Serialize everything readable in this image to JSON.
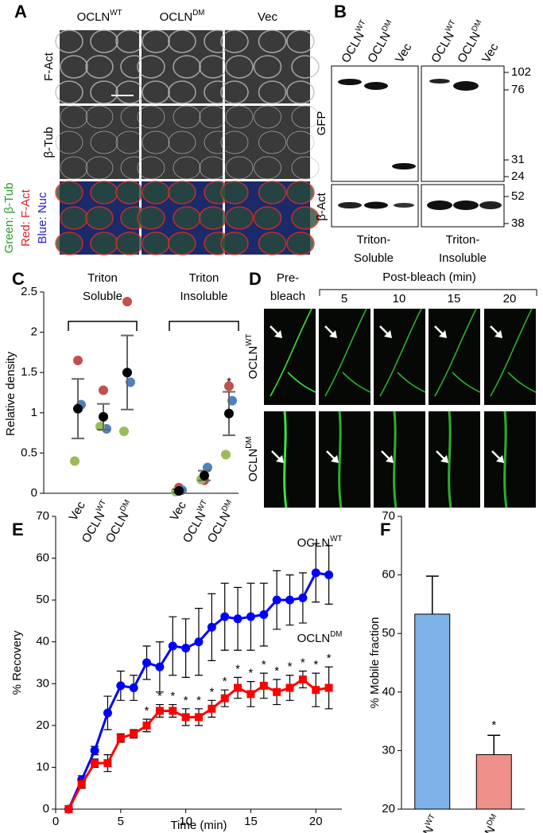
{
  "figure": {
    "panel_labels": [
      "A",
      "B",
      "C",
      "D",
      "E",
      "F"
    ],
    "panel_a": {
      "columns": [
        {
          "label": "OCLN",
          "sup": "WT"
        },
        {
          "label": "OCLN",
          "sup": "DM"
        },
        "Vec"
      ],
      "rows": [
        "F-Act",
        "β-Tub"
      ],
      "merge_labels": [
        "Green: β-Tub",
        "Red: F-Act",
        "Blue: Nuc"
      ]
    },
    "panel_b": {
      "lanes": [
        {
          "label": "OCLN",
          "sup": "WT"
        },
        {
          "label": "OCLN",
          "sup": "DM"
        },
        "Vec",
        {
          "label": "OCLN",
          "sup": "WT"
        },
        {
          "label": "OCLN",
          "sup": "DM"
        },
        "Vec"
      ],
      "rows": [
        "GFP",
        "β-Act"
      ],
      "markers": [
        102,
        76,
        31,
        24,
        52,
        38
      ],
      "fractions": [
        [
          "Triton-",
          "Soluble"
        ],
        [
          "Triton-",
          "Insoluble"
        ]
      ]
    },
    "panel_d": {
      "pre": [
        "Pre-",
        "bleach"
      ],
      "post": "Post-bleach (min)",
      "times": [
        5,
        10,
        15,
        20
      ],
      "rows": [
        {
          "label": "OCLN",
          "sup": "WT"
        },
        {
          "label": "OCLN",
          "sup": "DM"
        }
      ]
    }
  },
  "chart_data": [
    {
      "type": "dot",
      "y_label": "Relative density",
      "group_labels": [
        [
          "Triton",
          "Soluble"
        ],
        [
          "Triton",
          "Insoluble"
        ]
      ],
      "categories": [
        "Vec",
        {
          "label": "OCLN",
          "sup": "WT"
        },
        {
          "label": "OCLN",
          "sup": "DM"
        },
        "Vec",
        {
          "label": "OCLN",
          "sup": "WT"
        },
        {
          "label": "OCLN",
          "sup": "DM"
        }
      ],
      "replicates": [
        {
          "color": "#c0504d",
          "values": [
            1.65,
            1.28,
            2.38,
            0.07,
            0.16,
            1.33
          ]
        },
        {
          "color": "#4f81bd",
          "values": [
            1.1,
            0.8,
            1.38,
            0.04,
            0.32,
            1.15
          ]
        },
        {
          "color": "#9bbb59",
          "values": [
            0.4,
            0.83,
            0.77,
            0.02,
            0.17,
            0.48
          ]
        }
      ],
      "mean": {
        "color": "#000000",
        "values": [
          1.05,
          0.95,
          1.5,
          0.03,
          0.22,
          0.99
        ],
        "errors": [
          0.37,
          0.16,
          0.46,
          0.02,
          0.06,
          0.27
        ]
      },
      "significance": [
        null,
        null,
        null,
        null,
        null,
        "*"
      ],
      "ylim": [
        0,
        2.5
      ],
      "yticks": [
        0,
        0.5,
        1,
        1.5,
        2,
        2.5
      ]
    },
    {
      "type": "line",
      "x_label": "Time (min)",
      "y_label": "% Recovery",
      "x": [
        1,
        2,
        3,
        4,
        5,
        6,
        7,
        8,
        9,
        10,
        11,
        12,
        13,
        14,
        15,
        16,
        17,
        18,
        19,
        20,
        21
      ],
      "series": [
        {
          "name": {
            "label": "OCLN",
            "sup": "WT"
          },
          "color": "#0000ff",
          "marker": "circle",
          "values": [
            0,
            7,
            14,
            23,
            29.5,
            29,
            35,
            34,
            39,
            38.5,
            40,
            43.5,
            46,
            45.5,
            46,
            46.5,
            50,
            50,
            50.5,
            56.5,
            56
          ],
          "errors": [
            0,
            1,
            1,
            4,
            3.5,
            3,
            4,
            6,
            7,
            7,
            8,
            8,
            8,
            7.5,
            8,
            7.5,
            7,
            6,
            6,
            7,
            7
          ]
        },
        {
          "name": {
            "label": "OCLN",
            "sup": "DM"
          },
          "color": "#ff0000",
          "marker": "square",
          "values": [
            0,
            6,
            11,
            11,
            17,
            18,
            20,
            23.5,
            23.5,
            22,
            22,
            24,
            26.5,
            29,
            27.5,
            29.5,
            28,
            29,
            31,
            28.5,
            29
          ],
          "errors": [
            0,
            1,
            1,
            2,
            1,
            1,
            1.5,
            1.5,
            1.5,
            2,
            2,
            2,
            2,
            2.5,
            3,
            3,
            3,
            3,
            2,
            4,
            5
          ]
        }
      ],
      "significance": [
        null,
        null,
        null,
        null,
        null,
        null,
        "*",
        "*",
        "*",
        "*",
        "*",
        "*",
        "*",
        "*",
        "*",
        "*",
        "*",
        "*",
        "*",
        "*",
        "*"
      ],
      "xlim": [
        0,
        22
      ],
      "xticks": [
        0,
        5,
        10,
        15,
        20
      ],
      "ylim": [
        0,
        70
      ],
      "yticks": [
        0,
        10,
        20,
        30,
        40,
        50,
        60,
        70
      ]
    },
    {
      "type": "bar",
      "y_label": "% Mobile fraction",
      "categories": [
        {
          "label": "OCLN",
          "sup": "WT"
        },
        {
          "label": "OCLN",
          "sup": "DM"
        }
      ],
      "values": [
        53.3,
        29.3
      ],
      "errors": [
        6.5,
        3.3
      ],
      "colors": [
        "#7fb2e8",
        "#f0908a"
      ],
      "significance": [
        null,
        "*"
      ],
      "ylim": [
        20,
        70
      ],
      "yticks": [
        20,
        30,
        40,
        50,
        60,
        70
      ]
    }
  ]
}
